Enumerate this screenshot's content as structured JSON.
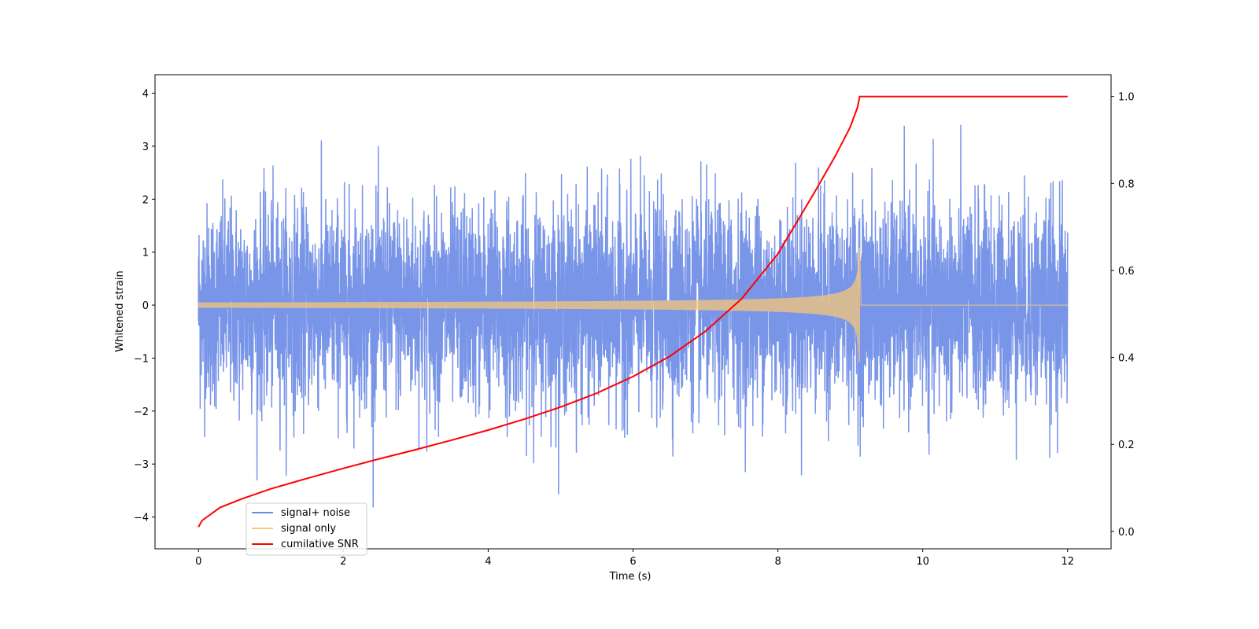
{
  "chart_data": {
    "type": "line",
    "xlabel": "Time (s)",
    "ylabel": "Whitened strain",
    "y2label": "",
    "xlim": [
      -0.6,
      12.6
    ],
    "ylim": [
      -4.6,
      4.35
    ],
    "y2lim": [
      -0.04,
      1.05
    ],
    "xticks": [
      0,
      2,
      4,
      6,
      8,
      10,
      12
    ],
    "yticks": [
      -4,
      -3,
      -2,
      -1,
      0,
      1,
      2,
      3,
      4
    ],
    "y2ticks": [
      0.0,
      0.2,
      0.4,
      0.6,
      0.8,
      1.0
    ],
    "xtick_labels": [
      "0",
      "2",
      "4",
      "6",
      "8",
      "10",
      "12"
    ],
    "ytick_labels": [
      "−4",
      "−3",
      "−2",
      "−1",
      "0",
      "1",
      "2",
      "3",
      "4"
    ],
    "y2tick_labels": [
      "0.0",
      "0.2",
      "0.4",
      "0.6",
      "0.8",
      "1.0"
    ],
    "legend_position": "lower-left",
    "series": [
      {
        "name": "signal+ noise",
        "axis": "left",
        "color": "#6a8ae6",
        "description_values": {
          "t_start": 0,
          "t_end": 12,
          "noise_std": 0.95,
          "min": -4.15,
          "max": 3.95
        }
      },
      {
        "name": "signal only",
        "axis": "left",
        "color": "#f5c77a",
        "description_values": {
          "t_start": 0,
          "t_merger": 9.13,
          "t_end": 12,
          "peak_amplitude": 1.08,
          "start_amplitude": 0.05
        }
      },
      {
        "name": "cumilative SNR",
        "axis": "right",
        "color": "#ff0000",
        "x": [
          0,
          0.05,
          0.3,
          0.6,
          1,
          1.5,
          2,
          2.5,
          3,
          3.5,
          4,
          4.5,
          5,
          5.5,
          6,
          6.5,
          7,
          7.5,
          8,
          8.5,
          8.8,
          9.0,
          9.1,
          9.13,
          10,
          11,
          12
        ],
        "values": [
          0.01,
          0.025,
          0.055,
          0.075,
          0.098,
          0.122,
          0.145,
          0.167,
          0.188,
          0.21,
          0.233,
          0.258,
          0.286,
          0.318,
          0.356,
          0.402,
          0.46,
          0.535,
          0.638,
          0.778,
          0.865,
          0.93,
          0.975,
          1.0,
          1.0,
          1.0,
          1.0
        ]
      }
    ]
  }
}
